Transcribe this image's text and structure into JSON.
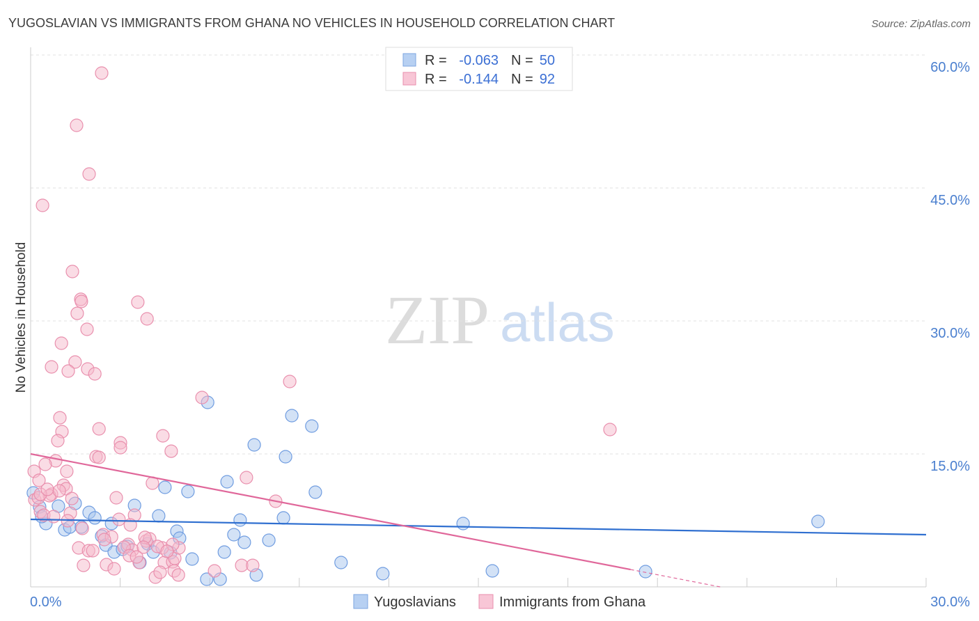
{
  "watermark": {
    "zip": "ZIP",
    "atlas": "atlas"
  },
  "source": "Source: ZipAtlas.com",
  "colors": {
    "blue_fill": "#a8c5ee",
    "blue_stroke": "#6f9ce0",
    "pink_fill": "#f6b9cc",
    "pink_stroke": "#e98fad",
    "blue_line": "#2f6fd0",
    "pink_line": "#e0679a",
    "grid": "#e2e2e2",
    "axis": "#cccccc"
  },
  "chart_data": {
    "type": "scatter",
    "title": "YUGOSLAVIAN VS IMMIGRANTS FROM GHANA NO VEHICLES IN HOUSEHOLD CORRELATION CHART",
    "xlabel": "",
    "ylabel": "No Vehicles in Household",
    "xlim": [
      0,
      30
    ],
    "ylim": [
      0,
      61
    ],
    "grid": true,
    "legend_position": "top-center",
    "x_ticks": [
      0,
      3,
      6,
      9,
      12,
      15,
      18,
      21,
      24,
      27,
      30
    ],
    "x_tick_labels": [
      "0.0%",
      "30.0%"
    ],
    "y_ticks": [
      15,
      30,
      45,
      60
    ],
    "y_tick_labels": [
      "15.0%",
      "30.0%",
      "45.0%",
      "60.0%"
    ],
    "legend": {
      "r_label": "R =",
      "n_label": "N ="
    },
    "series": [
      {
        "name": "Yugoslavians",
        "r_value": "-0.063",
        "n_value": "50",
        "points": [
          [
            0.09,
            10.6
          ],
          [
            0.3,
            9.03
          ],
          [
            0.51,
            7.15
          ],
          [
            0.93,
            9.11
          ],
          [
            1.14,
            6.44
          ],
          [
            1.31,
            6.75
          ],
          [
            1.49,
            9.42
          ],
          [
            1.7,
            6.75
          ],
          [
            1.96,
            8.4
          ],
          [
            2.15,
            7.78
          ],
          [
            2.38,
            5.73
          ],
          [
            2.52,
            4.71
          ],
          [
            2.8,
            3.93
          ],
          [
            2.71,
            7.15
          ],
          [
            3.08,
            4.24
          ],
          [
            3.24,
            4.56
          ],
          [
            3.48,
            9.19
          ],
          [
            3.66,
            2.75
          ],
          [
            3.92,
            4.87
          ],
          [
            4.11,
            3.93
          ],
          [
            4.29,
            8.01
          ],
          [
            4.5,
            11.23
          ],
          [
            4.69,
            3.85
          ],
          [
            4.9,
            6.28
          ],
          [
            4.99,
            5.5
          ],
          [
            5.27,
            10.76
          ],
          [
            5.41,
            3.14
          ],
          [
            5.93,
            20.81
          ],
          [
            5.9,
            0.86
          ],
          [
            6.35,
            0.86
          ],
          [
            6.49,
            3.93
          ],
          [
            6.58,
            11.86
          ],
          [
            6.81,
            5.89
          ],
          [
            7.02,
            7.54
          ],
          [
            7.16,
            5.03
          ],
          [
            7.49,
            16.02
          ],
          [
            7.56,
            1.34
          ],
          [
            7.98,
            5.26
          ],
          [
            8.47,
            7.78
          ],
          [
            8.54,
            14.69
          ],
          [
            8.75,
            19.32
          ],
          [
            9.42,
            18.14
          ],
          [
            9.54,
            10.68
          ],
          [
            10.4,
            2.75
          ],
          [
            11.8,
            1.49
          ],
          [
            14.49,
            7.15
          ],
          [
            15.47,
            1.81
          ],
          [
            20.6,
            1.73
          ],
          [
            26.38,
            7.38
          ],
          [
            0.37,
            7.93
          ]
        ]
      },
      {
        "name": "Immigrants from Ghana",
        "r_value": "-0.144",
        "n_value": "92",
        "points": [
          [
            2.38,
            57.96
          ],
          [
            1.54,
            52.07
          ],
          [
            1.96,
            46.57
          ],
          [
            0.4,
            43.04
          ],
          [
            1.4,
            35.58
          ],
          [
            1.68,
            32.44
          ],
          [
            1.7,
            32.2
          ],
          [
            3.59,
            32.12
          ],
          [
            1.56,
            30.86
          ],
          [
            3.9,
            30.24
          ],
          [
            1.89,
            29.06
          ],
          [
            1.03,
            27.49
          ],
          [
            0.7,
            24.82
          ],
          [
            1.49,
            25.37
          ],
          [
            1.26,
            24.35
          ],
          [
            1.91,
            24.58
          ],
          [
            2.15,
            24.03
          ],
          [
            8.68,
            23.17
          ],
          [
            5.74,
            21.36
          ],
          [
            0.98,
            19.08
          ],
          [
            1.05,
            17.51
          ],
          [
            2.29,
            17.83
          ],
          [
            0.91,
            16.49
          ],
          [
            3.01,
            16.26
          ],
          [
            3.01,
            15.71
          ],
          [
            4.43,
            17.04
          ],
          [
            4.71,
            15.31
          ],
          [
            2.19,
            14.69
          ],
          [
            2.29,
            14.61
          ],
          [
            0.84,
            14.22
          ],
          [
            0.49,
            13.82
          ],
          [
            0.12,
            13.04
          ],
          [
            1.21,
            13.04
          ],
          [
            0.28,
            12.02
          ],
          [
            1.1,
            11.47
          ],
          [
            1.19,
            11.07
          ],
          [
            7.23,
            12.33
          ],
          [
            4.08,
            11.7
          ],
          [
            0.7,
            10.45
          ],
          [
            0.63,
            10.29
          ],
          [
            1.38,
            9.97
          ],
          [
            2.87,
            10.05
          ],
          [
            0.14,
            9.82
          ],
          [
            0.26,
            10.05
          ],
          [
            0.33,
            8.48
          ],
          [
            0.44,
            8.09
          ],
          [
            0.77,
            7.93
          ],
          [
            1.33,
            8.32
          ],
          [
            1.24,
            7.46
          ],
          [
            2.96,
            7.62
          ],
          [
            3.48,
            8.09
          ],
          [
            8.21,
            9.66
          ],
          [
            1.73,
            6.6
          ],
          [
            2.43,
            5.89
          ],
          [
            2.71,
            5.65
          ],
          [
            3.34,
            6.99
          ],
          [
            3.87,
            5.18
          ],
          [
            3.99,
            5.42
          ],
          [
            3.83,
            5.58
          ],
          [
            4.41,
            4.4
          ],
          [
            3.27,
            4.79
          ],
          [
            3.41,
            4.16
          ],
          [
            3.13,
            4.48
          ],
          [
            1.61,
            4.4
          ],
          [
            1.94,
            4.08
          ],
          [
            2.08,
            4.08
          ],
          [
            4.25,
            4.56
          ],
          [
            4.48,
            2.75
          ],
          [
            4.76,
            2.83
          ],
          [
            4.83,
            3.22
          ],
          [
            4.97,
            4.4
          ],
          [
            4.81,
            1.81
          ],
          [
            4.95,
            1.34
          ],
          [
            4.18,
            1.1
          ],
          [
            4.34,
            1.65
          ],
          [
            3.64,
            2.75
          ],
          [
            1.77,
            2.43
          ],
          [
            2.54,
            2.51
          ],
          [
            2.8,
            2.04
          ],
          [
            3.31,
            3.53
          ],
          [
            4.76,
            4.79
          ],
          [
            7.07,
            2.43
          ],
          [
            7.44,
            2.43
          ],
          [
            6.16,
            1.81
          ],
          [
            19.41,
            17.75
          ],
          [
            0.33,
            10.45
          ],
          [
            0.56,
            11.0
          ],
          [
            0.96,
            10.84
          ],
          [
            2.47,
            5.34
          ],
          [
            3.78,
            4.48
          ],
          [
            3.55,
            3.38
          ],
          [
            4.57,
            4.01
          ]
        ]
      }
    ],
    "trend_lines": [
      {
        "series_index": 0,
        "solid": [
          [
            0,
            7.62
          ],
          [
            30,
            5.89
          ]
        ]
      },
      {
        "series_index": 1,
        "solid": [
          [
            0,
            15.0
          ],
          [
            20.1,
            1.96
          ]
        ],
        "dashed": [
          [
            20.1,
            1.96
          ],
          [
            23.1,
            0
          ]
        ]
      }
    ]
  }
}
